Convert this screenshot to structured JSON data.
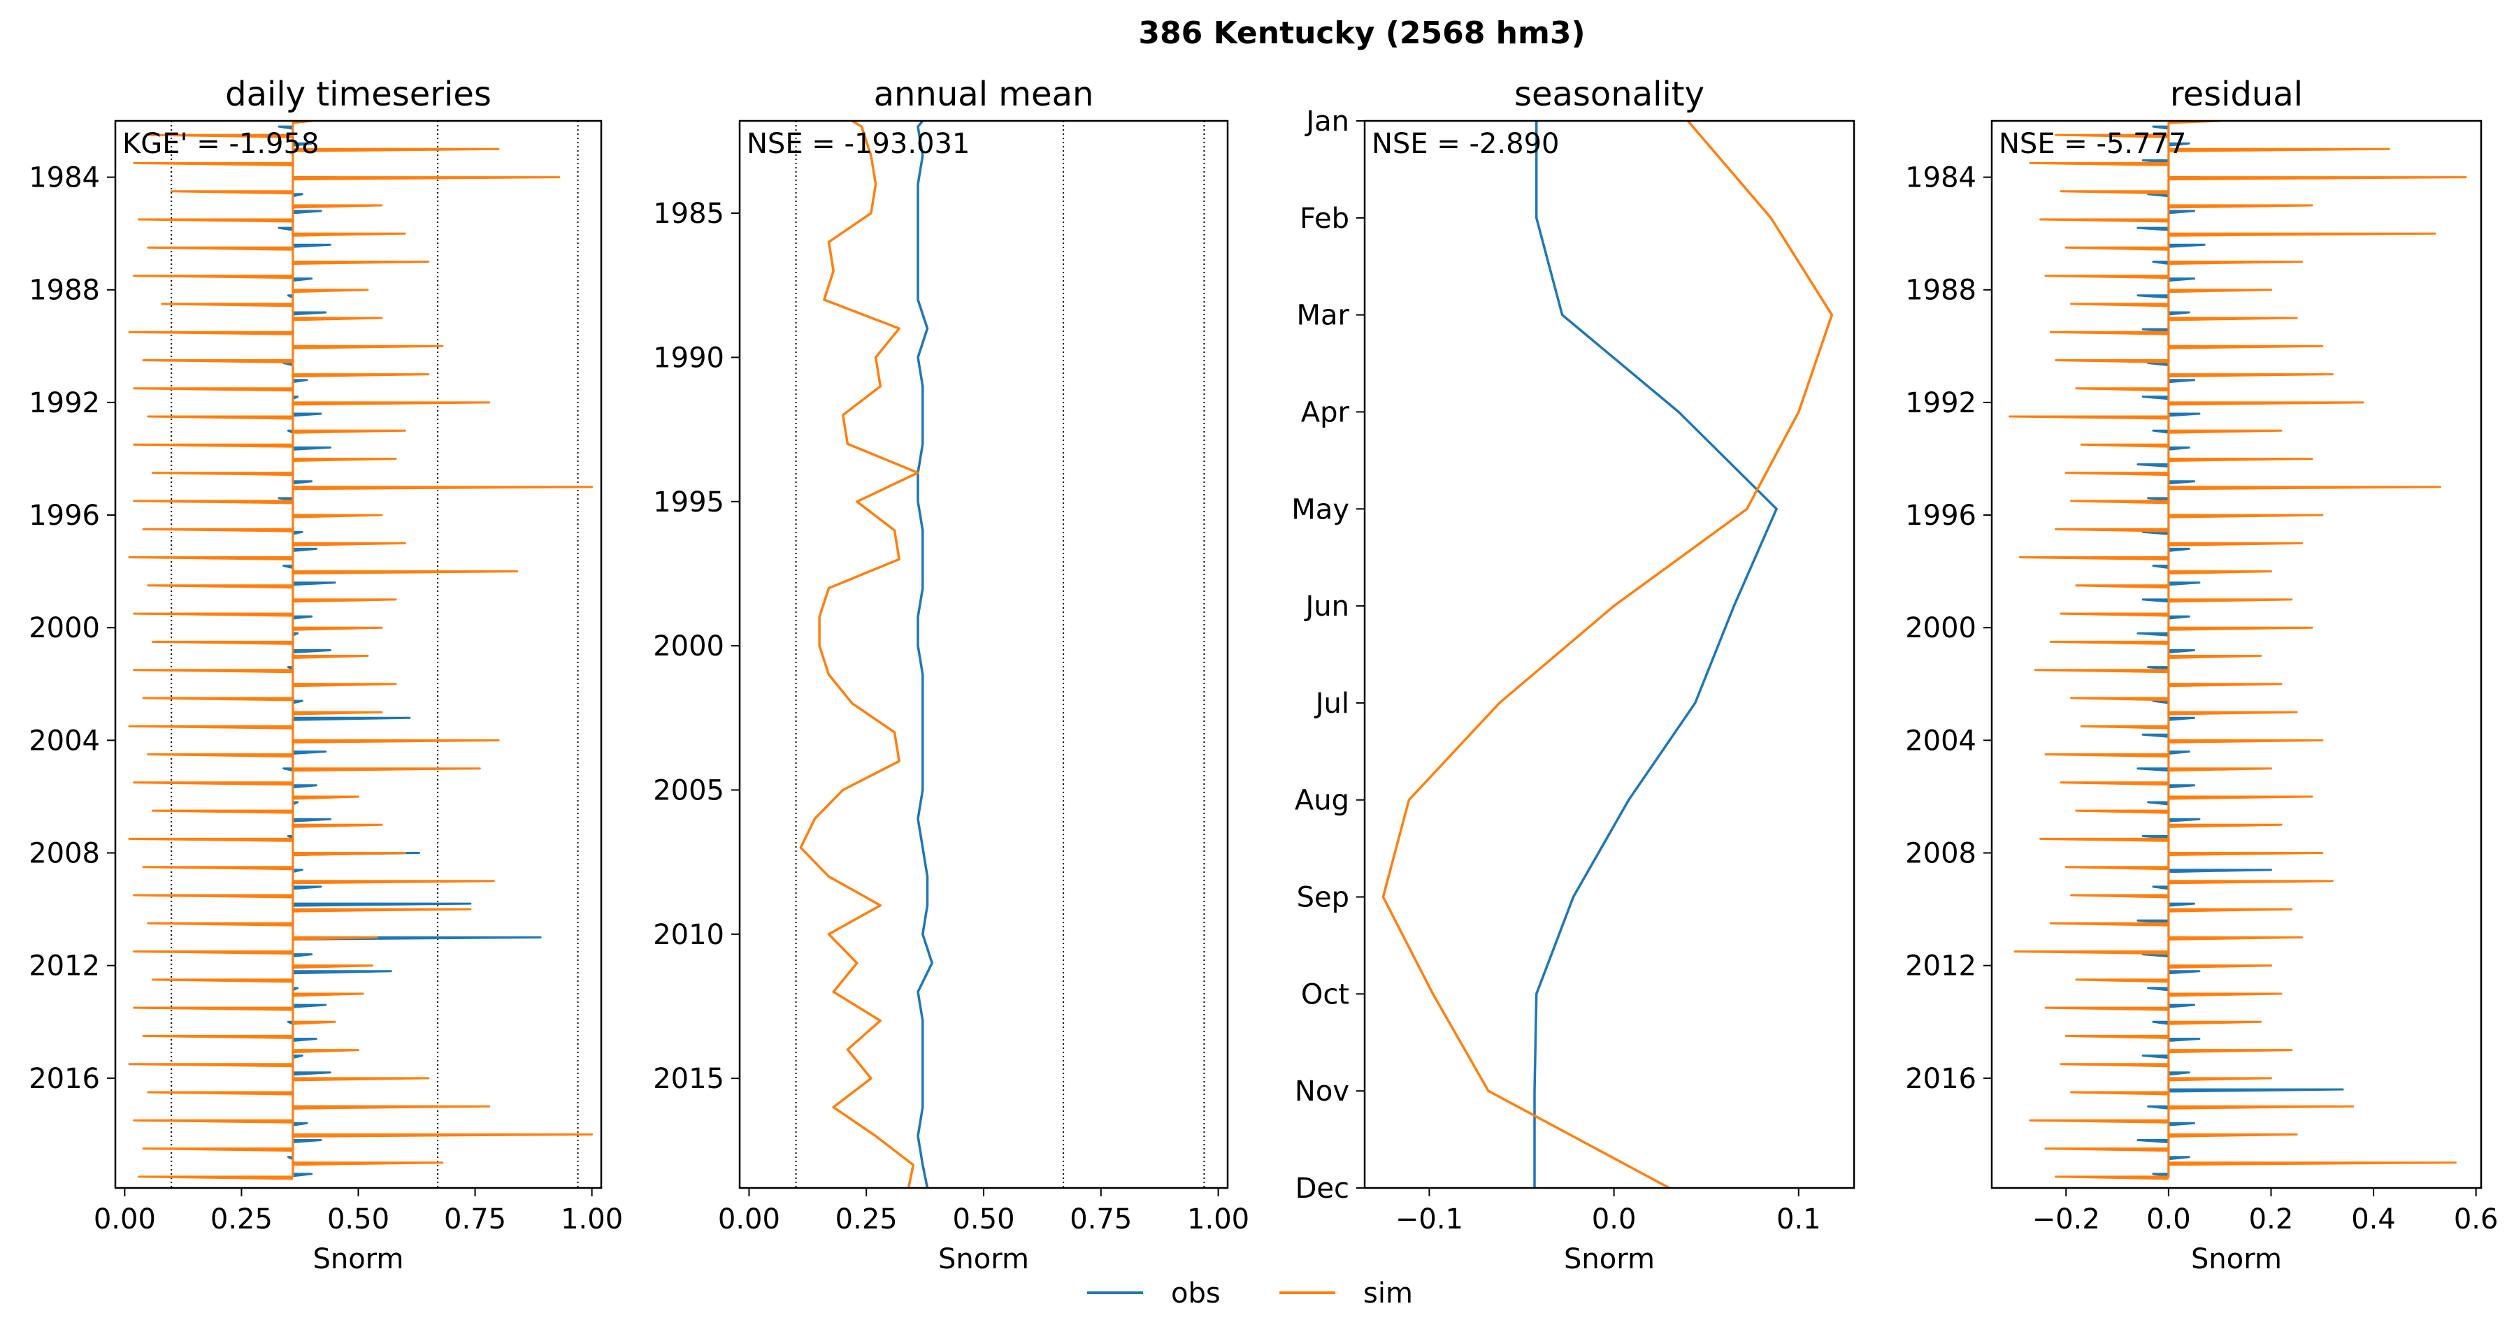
{
  "figure": {
    "suptitle": "386  Kentucky (2568 hm3)"
  },
  "legend": [
    {
      "label": "obs",
      "color": "#1f77b4"
    },
    {
      "label": "sim",
      "color": "#ff7f0e"
    }
  ],
  "chart_data": [
    {
      "type": "line",
      "title": "daily timeseries",
      "xlabel": "Snorm",
      "ylabel": "",
      "annotation": "KGE' = -1.958",
      "xlim": [
        -0.02,
        1.02
      ],
      "ylim": [
        1982.0,
        2019.9
      ],
      "y_reversed": true,
      "xticks": [
        0.0,
        0.25,
        0.5,
        0.75,
        1.0
      ],
      "xtick_labels": [
        "0.00",
        "0.25",
        "0.50",
        "0.75",
        "1.00"
      ],
      "yticks": [
        1984,
        1988,
        1992,
        1996,
        2000,
        2004,
        2008,
        2012,
        2016
      ],
      "ytick_labels": [
        "1984",
        "1988",
        "1992",
        "1996",
        "2000",
        "2004",
        "2008",
        "2012",
        "2016"
      ],
      "vlines": [
        0.1,
        0.67,
        0.97
      ],
      "style": "spiky",
      "series": [
        {
          "name": "obs",
          "color": "#1f77b4",
          "y": [
            1982.2,
            1982.8,
            1983.4,
            1984.0,
            1984.6,
            1985.2,
            1985.8,
            1986.4,
            1987.0,
            1987.6,
            1988.2,
            1988.8,
            1989.4,
            1990.0,
            1990.6,
            1991.2,
            1991.8,
            1992.4,
            1993.0,
            1993.6,
            1994.2,
            1994.8,
            1995.4,
            1996.0,
            1996.6,
            1997.2,
            1997.8,
            1998.4,
            1999.0,
            1999.6,
            2000.2,
            2000.8,
            2001.4,
            2002.0,
            2002.6,
            2003.2,
            2003.8,
            2004.4,
            2005.0,
            2005.6,
            2006.2,
            2006.8,
            2007.4,
            2008.0,
            2008.6,
            2009.2,
            2009.8,
            2010.4,
            2011.0,
            2011.6,
            2012.2,
            2012.8,
            2013.4,
            2014.0,
            2014.6,
            2015.2,
            2015.8,
            2016.4,
            2017.0,
            2017.6,
            2018.2,
            2018.8,
            2019.4
          ],
          "x": [
            0.33,
            0.4,
            0.36,
            0.45,
            0.38,
            0.42,
            0.33,
            0.44,
            0.37,
            0.4,
            0.35,
            0.43,
            0.36,
            0.41,
            0.34,
            0.39,
            0.37,
            0.42,
            0.35,
            0.44,
            0.36,
            0.4,
            0.33,
            0.43,
            0.38,
            0.41,
            0.34,
            0.45,
            0.36,
            0.4,
            0.37,
            0.44,
            0.35,
            0.42,
            0.38,
            0.61,
            0.36,
            0.43,
            0.34,
            0.41,
            0.37,
            0.44,
            0.35,
            0.63,
            0.38,
            0.42,
            0.74,
            0.36,
            0.89,
            0.4,
            0.57,
            0.37,
            0.43,
            0.35,
            0.41,
            0.38,
            0.44,
            0.36,
            0.67,
            0.39,
            0.42,
            0.35,
            0.4
          ]
        },
        {
          "name": "sim",
          "color": "#ff7f0e",
          "y": [
            1982.0,
            1982.5,
            1983.0,
            1983.5,
            1984.0,
            1984.5,
            1985.0,
            1985.5,
            1986.0,
            1986.5,
            1987.0,
            1987.5,
            1988.0,
            1988.5,
            1989.0,
            1989.5,
            1990.0,
            1990.5,
            1991.0,
            1991.5,
            1992.0,
            1992.5,
            1993.0,
            1993.5,
            1994.0,
            1994.5,
            1995.0,
            1995.5,
            1996.0,
            1996.5,
            1997.0,
            1997.5,
            1998.0,
            1998.5,
            1999.0,
            1999.5,
            2000.0,
            2000.5,
            2001.0,
            2001.5,
            2002.0,
            2002.5,
            2003.0,
            2003.5,
            2004.0,
            2004.5,
            2005.0,
            2005.5,
            2006.0,
            2006.5,
            2007.0,
            2007.5,
            2008.0,
            2008.5,
            2009.0,
            2009.5,
            2010.0,
            2010.5,
            2011.0,
            2011.5,
            2012.0,
            2012.5,
            2013.0,
            2013.5,
            2014.0,
            2014.5,
            2015.0,
            2015.5,
            2016.0,
            2016.5,
            2017.0,
            2017.5,
            2018.0,
            2018.5,
            2019.0,
            2019.5
          ],
          "x": [
            0.4,
            0.05,
            0.8,
            0.02,
            0.93,
            0.1,
            0.55,
            0.03,
            0.6,
            0.05,
            0.65,
            0.02,
            0.52,
            0.08,
            0.55,
            0.01,
            0.68,
            0.04,
            0.65,
            0.02,
            0.78,
            0.05,
            0.6,
            0.02,
            0.58,
            0.06,
            1.0,
            0.02,
            0.55,
            0.04,
            0.6,
            0.01,
            0.84,
            0.05,
            0.58,
            0.02,
            0.55,
            0.06,
            0.52,
            0.02,
            0.58,
            0.04,
            0.55,
            0.01,
            0.8,
            0.05,
            0.76,
            0.02,
            0.5,
            0.06,
            0.55,
            0.01,
            0.6,
            0.04,
            0.79,
            0.02,
            0.74,
            0.05,
            0.54,
            0.02,
            0.53,
            0.06,
            0.51,
            0.02,
            0.45,
            0.04,
            0.5,
            0.01,
            0.65,
            0.05,
            0.78,
            0.02,
            1.0,
            0.04,
            0.68,
            0.03
          ]
        }
      ]
    },
    {
      "type": "line",
      "title": "annual mean",
      "xlabel": "Snorm",
      "ylabel": "",
      "annotation": "NSE = -193.031",
      "xlim": [
        -0.02,
        1.02
      ],
      "ylim": [
        1981.8,
        2018.8
      ],
      "y_reversed": true,
      "xticks": [
        0.0,
        0.25,
        0.5,
        0.75,
        1.0
      ],
      "xtick_labels": [
        "0.00",
        "0.25",
        "0.50",
        "0.75",
        "1.00"
      ],
      "yticks": [
        1985,
        1990,
        1995,
        2000,
        2005,
        2010,
        2015
      ],
      "ytick_labels": [
        "1985",
        "1990",
        "1995",
        "2000",
        "2005",
        "2010",
        "2015"
      ],
      "vlines": [
        0.1,
        0.67,
        0.97
      ],
      "style": "line",
      "series": [
        {
          "name": "obs",
          "color": "#1f77b4",
          "y": [
            1981.8,
            1982.0,
            1983.0,
            1984.0,
            1985.0,
            1986.0,
            1987.0,
            1988.0,
            1989.0,
            1990.0,
            1991.0,
            1992.0,
            1993.0,
            1994.0,
            1995.0,
            1996.0,
            1997.0,
            1998.0,
            1999.0,
            2000.0,
            2001.0,
            2002.0,
            2003.0,
            2004.0,
            2005.0,
            2006.0,
            2007.0,
            2008.0,
            2009.0,
            2010.0,
            2011.0,
            2012.0,
            2013.0,
            2014.0,
            2015.0,
            2016.0,
            2017.0,
            2018.0,
            2018.8
          ],
          "x": [
            0.37,
            0.36,
            0.37,
            0.36,
            0.36,
            0.36,
            0.36,
            0.36,
            0.38,
            0.36,
            0.37,
            0.37,
            0.37,
            0.36,
            0.36,
            0.37,
            0.37,
            0.37,
            0.36,
            0.36,
            0.37,
            0.37,
            0.37,
            0.37,
            0.37,
            0.36,
            0.37,
            0.38,
            0.38,
            0.37,
            0.39,
            0.36,
            0.37,
            0.37,
            0.37,
            0.37,
            0.36,
            0.37,
            0.38
          ]
        },
        {
          "name": "sim",
          "color": "#ff7f0e",
          "y": [
            1981.8,
            1982.0,
            1983.0,
            1984.0,
            1985.0,
            1986.0,
            1987.0,
            1988.0,
            1989.0,
            1990.0,
            1991.0,
            1992.0,
            1993.0,
            1994.0,
            1995.0,
            1996.0,
            1997.0,
            1998.0,
            1999.0,
            2000.0,
            2001.0,
            2002.0,
            2003.0,
            2004.0,
            2005.0,
            2006.0,
            2007.0,
            2008.0,
            2009.0,
            2010.0,
            2011.0,
            2012.0,
            2013.0,
            2014.0,
            2015.0,
            2016.0,
            2017.0,
            2018.0,
            2018.8
          ],
          "x": [
            0.22,
            0.24,
            0.26,
            0.27,
            0.26,
            0.17,
            0.18,
            0.16,
            0.32,
            0.27,
            0.28,
            0.2,
            0.21,
            0.36,
            0.23,
            0.31,
            0.32,
            0.17,
            0.15,
            0.15,
            0.17,
            0.22,
            0.31,
            0.32,
            0.2,
            0.14,
            0.11,
            0.17,
            0.28,
            0.17,
            0.23,
            0.18,
            0.28,
            0.21,
            0.26,
            0.18,
            0.27,
            0.35,
            0.34
          ]
        }
      ]
    },
    {
      "type": "line",
      "title": "seasonality",
      "xlabel": "Snorm",
      "ylabel": "",
      "annotation": "NSE = -2.890",
      "xlim": [
        -0.135,
        0.13
      ],
      "ylim": [
        0,
        11
      ],
      "y_reversed": true,
      "xticks": [
        -0.1,
        0.0,
        0.1
      ],
      "xtick_labels": [
        "−0.1",
        "0.0",
        "0.1"
      ],
      "yticks": [
        0,
        1,
        2,
        3,
        4,
        5,
        6,
        7,
        8,
        9,
        10,
        11
      ],
      "ytick_labels": [
        "Jan",
        "Feb",
        "Mar",
        "Apr",
        "May",
        "Jun",
        "Jul",
        "Aug",
        "Sep",
        "Oct",
        "Nov",
        "Dec"
      ],
      "vlines": [],
      "style": "line",
      "series": [
        {
          "name": "obs",
          "color": "#1f77b4",
          "y": [
            0,
            1,
            2,
            3,
            4,
            5,
            6,
            7,
            8,
            9,
            10,
            11
          ],
          "x": [
            -0.042,
            -0.042,
            -0.028,
            0.035,
            0.088,
            0.065,
            0.044,
            0.008,
            -0.022,
            -0.042,
            -0.043,
            -0.043
          ]
        },
        {
          "name": "sim",
          "color": "#ff7f0e",
          "y": [
            0,
            1,
            2,
            3,
            4,
            5,
            6,
            7,
            8,
            9,
            10,
            11
          ],
          "x": [
            0.04,
            0.085,
            0.118,
            0.1,
            0.072,
            0.0,
            -0.062,
            -0.111,
            -0.125,
            -0.098,
            -0.068,
            0.03
          ]
        }
      ]
    },
    {
      "type": "line",
      "title": "residual",
      "xlabel": "Snorm",
      "ylabel": "",
      "annotation": "NSE = -5.777",
      "xlim": [
        -0.345,
        0.61
      ],
      "ylim": [
        1982.0,
        2019.9
      ],
      "y_reversed": true,
      "xticks": [
        -0.2,
        0.0,
        0.2,
        0.4,
        0.6
      ],
      "xtick_labels": [
        "−0.2",
        "0.0",
        "0.2",
        "0.4",
        "0.6"
      ],
      "yticks": [
        1984,
        1988,
        1992,
        1996,
        2000,
        2004,
        2008,
        2012,
        2016
      ],
      "ytick_labels": [
        "1984",
        "1988",
        "1992",
        "1996",
        "2000",
        "2004",
        "2008",
        "2012",
        "2016"
      ],
      "vlines": [],
      "style": "spiky",
      "series": [
        {
          "name": "obs",
          "color": "#1f77b4",
          "y": [
            1982.2,
            1982.8,
            1983.4,
            1984.0,
            1984.6,
            1985.2,
            1985.8,
            1986.4,
            1987.0,
            1987.6,
            1988.2,
            1988.8,
            1989.4,
            1990.0,
            1990.6,
            1991.2,
            1991.8,
            1992.4,
            1993.0,
            1993.6,
            1994.2,
            1994.8,
            1995.4,
            1996.0,
            1996.6,
            1997.2,
            1997.8,
            1998.4,
            1999.0,
            1999.6,
            2000.2,
            2000.8,
            2001.4,
            2002.0,
            2002.6,
            2003.2,
            2003.8,
            2004.4,
            2005.0,
            2005.6,
            2006.2,
            2006.8,
            2007.4,
            2008.0,
            2008.6,
            2009.2,
            2009.8,
            2010.4,
            2011.0,
            2011.6,
            2012.2,
            2012.8,
            2013.4,
            2014.0,
            2014.6,
            2015.2,
            2015.8,
            2016.4,
            2017.0,
            2017.6,
            2018.2,
            2018.8,
            2019.4
          ],
          "x": [
            -0.03,
            0.04,
            -0.05,
            0.06,
            -0.04,
            0.05,
            -0.06,
            0.07,
            -0.03,
            0.05,
            -0.06,
            0.04,
            -0.05,
            0.06,
            -0.04,
            0.05,
            -0.05,
            0.06,
            -0.03,
            0.04,
            -0.06,
            0.05,
            -0.04,
            0.06,
            -0.05,
            0.04,
            -0.03,
            0.06,
            -0.05,
            0.04,
            -0.06,
            0.05,
            -0.04,
            0.06,
            -0.03,
            0.05,
            -0.05,
            0.04,
            -0.06,
            0.05,
            -0.04,
            0.06,
            -0.05,
            0.04,
            0.2,
            -0.03,
            0.05,
            -0.06,
            0.04,
            -0.05,
            0.06,
            -0.04,
            0.05,
            -0.03,
            0.06,
            -0.05,
            0.04,
            0.34,
            -0.04,
            0.05,
            -0.06,
            0.04,
            -0.03
          ]
        },
        {
          "name": "sim",
          "color": "#ff7f0e",
          "y": [
            1982.0,
            1982.5,
            1983.0,
            1983.5,
            1984.0,
            1984.5,
            1985.0,
            1985.5,
            1986.0,
            1986.5,
            1987.0,
            1987.5,
            1988.0,
            1988.5,
            1989.0,
            1989.5,
            1990.0,
            1990.5,
            1991.0,
            1991.5,
            1992.0,
            1992.5,
            1993.0,
            1993.5,
            1994.0,
            1994.5,
            1995.0,
            1995.5,
            1996.0,
            1996.5,
            1997.0,
            1997.5,
            1998.0,
            1998.5,
            1999.0,
            1999.5,
            2000.0,
            2000.5,
            2001.0,
            2001.5,
            2002.0,
            2002.5,
            2003.0,
            2003.5,
            2004.0,
            2004.5,
            2005.0,
            2005.5,
            2006.0,
            2006.5,
            2007.0,
            2007.5,
            2008.0,
            2008.5,
            2009.0,
            2009.5,
            2010.0,
            2010.5,
            2011.0,
            2011.5,
            2012.0,
            2012.5,
            2013.0,
            2013.5,
            2014.0,
            2014.5,
            2015.0,
            2015.5,
            2016.0,
            2016.5,
            2017.0,
            2017.5,
            2018.0,
            2018.5,
            2019.0,
            2019.5
          ],
          "x": [
            0.1,
            -0.22,
            0.43,
            -0.27,
            0.58,
            -0.21,
            0.28,
            -0.25,
            0.52,
            -0.2,
            0.26,
            -0.24,
            0.2,
            -0.19,
            0.25,
            -0.23,
            0.3,
            -0.22,
            0.32,
            -0.18,
            0.38,
            -0.31,
            0.22,
            -0.17,
            0.28,
            -0.2,
            0.53,
            -0.19,
            0.3,
            -0.22,
            0.26,
            -0.29,
            0.2,
            -0.18,
            0.24,
            -0.21,
            0.28,
            -0.23,
            0.18,
            -0.26,
            0.22,
            -0.19,
            0.25,
            -0.17,
            0.3,
            -0.24,
            0.2,
            -0.21,
            0.28,
            -0.18,
            0.22,
            -0.25,
            0.3,
            -0.2,
            0.32,
            -0.19,
            0.24,
            -0.23,
            0.26,
            -0.3,
            0.2,
            -0.18,
            0.22,
            -0.24,
            0.18,
            -0.2,
            0.24,
            -0.21,
            0.2,
            -0.19,
            0.36,
            -0.27,
            0.25,
            -0.24,
            0.56,
            -0.22
          ]
        }
      ]
    }
  ]
}
